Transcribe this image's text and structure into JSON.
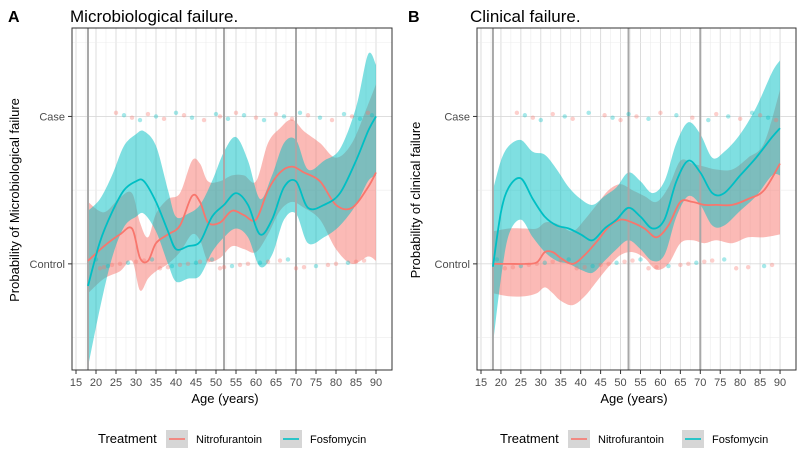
{
  "colors": {
    "nitrofurantoin": "#F8766D",
    "fosfomycin": "#00BFC4",
    "grid_major": "#d9d9d9",
    "grid_minor": "#ececec",
    "axis_text": "#4d4d4d",
    "ref_line": "#a8a8a8"
  },
  "legend": {
    "title": "Treatment",
    "items": [
      "Nitrofurantoin",
      "Fosfomycin"
    ]
  },
  "chart_data": [
    {
      "panel_label": "A",
      "type": "line",
      "title": "Microbiological failure.",
      "xlabel": "Age (years)",
      "ylabel": "Probability of Microbiological failure",
      "xlim": [
        14,
        94
      ],
      "ylim": [
        -0.72,
        1.6
      ],
      "y_ticks": [
        {
          "value": 0,
          "label": "Control"
        },
        {
          "value": 1,
          "label": "Case"
        }
      ],
      "x_ticks": [
        15,
        20,
        25,
        30,
        35,
        40,
        45,
        50,
        55,
        60,
        65,
        70,
        75,
        80,
        85,
        90
      ],
      "reference_lines": [
        18,
        52,
        70
      ],
      "series": [
        {
          "name": "Nitrofurantoin",
          "x": [
            18,
            22,
            26,
            29,
            31,
            33,
            35,
            38,
            41,
            44,
            46,
            48,
            51,
            54,
            57,
            60,
            63,
            66,
            69,
            72,
            76,
            80,
            84,
            88,
            90
          ],
          "y": [
            0.02,
            0.12,
            0.2,
            0.24,
            0.04,
            0.02,
            0.14,
            0.2,
            0.26,
            0.46,
            0.42,
            0.28,
            0.28,
            0.36,
            0.33,
            0.3,
            0.5,
            0.62,
            0.66,
            0.62,
            0.56,
            0.4,
            0.38,
            0.52,
            0.62
          ],
          "lower": [
            -0.2,
            -0.1,
            -0.05,
            0.02,
            -0.18,
            -0.1,
            -0.05,
            0.0,
            0.08,
            0.2,
            0.16,
            0.02,
            0.04,
            0.12,
            0.1,
            0.08,
            0.2,
            0.36,
            0.42,
            0.38,
            0.3,
            0.1,
            0.0,
            0.05,
            0.02
          ],
          "upper": [
            0.42,
            0.35,
            0.45,
            0.48,
            0.28,
            0.18,
            0.34,
            0.44,
            0.48,
            0.7,
            0.68,
            0.56,
            0.56,
            0.6,
            0.6,
            0.56,
            0.82,
            0.92,
            0.98,
            0.9,
            0.82,
            0.72,
            0.82,
            1.08,
            1.22
          ]
        },
        {
          "name": "Fosfomycin",
          "x": [
            18,
            21,
            24,
            27,
            30,
            32,
            35,
            38,
            40,
            43,
            46,
            49,
            52,
            55,
            58,
            61,
            64,
            67,
            70,
            73,
            77,
            81,
            85,
            88,
            90
          ],
          "y": [
            -0.15,
            0.15,
            0.35,
            0.5,
            0.56,
            0.56,
            0.42,
            0.22,
            0.1,
            0.12,
            0.15,
            0.32,
            0.4,
            0.48,
            0.4,
            0.2,
            0.3,
            0.52,
            0.56,
            0.38,
            0.4,
            0.48,
            0.7,
            0.9,
            1.0
          ],
          "lower": [
            -0.7,
            -0.3,
            0.04,
            0.25,
            0.32,
            0.34,
            0.22,
            0.0,
            -0.12,
            -0.1,
            -0.08,
            0.08,
            0.18,
            0.24,
            0.18,
            -0.02,
            0.06,
            0.3,
            0.34,
            0.14,
            0.18,
            0.26,
            0.4,
            0.56,
            0.6
          ],
          "upper": [
            0.36,
            0.44,
            0.6,
            0.8,
            0.88,
            0.9,
            0.8,
            0.5,
            0.32,
            0.34,
            0.4,
            0.56,
            0.76,
            0.86,
            0.7,
            0.44,
            0.6,
            0.82,
            0.84,
            0.64,
            0.7,
            0.78,
            1.06,
            1.42,
            1.35
          ]
        }
      ],
      "jitter_points": {
        "case_x": [
          25,
          27,
          29,
          31,
          33,
          35,
          37,
          40,
          42,
          44,
          47,
          50,
          51,
          53,
          55,
          57,
          60,
          62,
          65,
          67,
          69,
          71,
          73,
          76,
          79,
          82,
          84,
          86,
          88,
          89
        ],
        "control_x": [
          20,
          21,
          22,
          23,
          24,
          26,
          28,
          30,
          32,
          34,
          36,
          38,
          39,
          41,
          43,
          45,
          46,
          48,
          49,
          51,
          52,
          54,
          56,
          58,
          61,
          63,
          66,
          68,
          70,
          72,
          75,
          78,
          80,
          83,
          85,
          87
        ]
      }
    },
    {
      "panel_label": "B",
      "type": "line",
      "title": "Clinical failure.",
      "xlabel": "Age (years)",
      "ylabel": "Probability of clinical failure",
      "xlim": [
        14,
        94
      ],
      "ylim": [
        -0.72,
        1.6
      ],
      "y_ticks": [
        {
          "value": 0,
          "label": "Control"
        },
        {
          "value": 1,
          "label": "Case"
        }
      ],
      "x_ticks": [
        15,
        20,
        25,
        30,
        35,
        40,
        45,
        50,
        55,
        60,
        65,
        70,
        75,
        80,
        85,
        90
      ],
      "reference_lines": [
        18,
        52,
        70
      ],
      "series": [
        {
          "name": "Nitrofurantoin",
          "x": [
            18,
            22,
            26,
            29,
            31,
            33,
            35,
            38,
            41,
            44,
            47,
            50,
            53,
            56,
            59,
            62,
            65,
            68,
            71,
            74,
            78,
            82,
            86,
            90
          ],
          "y": [
            0.0,
            0.0,
            0.0,
            0.01,
            0.08,
            0.08,
            0.04,
            0.0,
            0.06,
            0.15,
            0.25,
            0.3,
            0.28,
            0.24,
            0.18,
            0.26,
            0.42,
            0.42,
            0.4,
            0.4,
            0.4,
            0.44,
            0.5,
            0.68
          ],
          "lower": [
            -0.2,
            -0.22,
            -0.22,
            -0.2,
            -0.16,
            -0.2,
            -0.25,
            -0.28,
            -0.22,
            -0.12,
            -0.02,
            0.06,
            0.08,
            0.04,
            -0.04,
            0.0,
            0.14,
            0.16,
            0.14,
            0.16,
            0.14,
            0.18,
            0.18,
            0.2
          ],
          "upper": [
            0.22,
            0.24,
            0.24,
            0.24,
            0.28,
            0.28,
            0.26,
            0.22,
            0.3,
            0.4,
            0.5,
            0.54,
            0.5,
            0.46,
            0.42,
            0.52,
            0.7,
            0.68,
            0.66,
            0.64,
            0.64,
            0.72,
            0.82,
            1.18
          ]
        },
        {
          "name": "Fosfomycin",
          "x": [
            18,
            20,
            22,
            25,
            28,
            31,
            34,
            37,
            40,
            43,
            46,
            49,
            52,
            55,
            58,
            61,
            64,
            67,
            70,
            73,
            76,
            80,
            84,
            88,
            90
          ],
          "y": [
            -0.02,
            0.35,
            0.52,
            0.58,
            0.44,
            0.32,
            0.26,
            0.24,
            0.2,
            0.16,
            0.24,
            0.3,
            0.38,
            0.32,
            0.24,
            0.3,
            0.56,
            0.7,
            0.62,
            0.48,
            0.48,
            0.6,
            0.72,
            0.86,
            0.92
          ],
          "lower": [
            -0.55,
            -0.1,
            0.2,
            0.3,
            0.18,
            0.08,
            0.02,
            0.0,
            -0.04,
            -0.06,
            0.02,
            0.1,
            0.16,
            0.1,
            0.02,
            0.06,
            0.32,
            0.46,
            0.4,
            0.26,
            0.26,
            0.36,
            0.46,
            0.6,
            0.6
          ],
          "upper": [
            0.5,
            0.7,
            0.8,
            0.84,
            0.76,
            0.74,
            0.64,
            0.52,
            0.44,
            0.4,
            0.46,
            0.52,
            0.62,
            0.56,
            0.48,
            0.56,
            0.82,
            0.96,
            0.88,
            0.72,
            0.76,
            0.88,
            1.06,
            1.3,
            1.38
          ]
        }
      ],
      "jitter_points": {
        "case_x": [
          24,
          26,
          28,
          30,
          33,
          36,
          38,
          42,
          46,
          48,
          50,
          52,
          54,
          57,
          60,
          64,
          68,
          72,
          74,
          77,
          80,
          83,
          85,
          87,
          89
        ],
        "control_x": [
          19,
          21,
          23,
          25,
          27,
          29,
          31,
          33,
          35,
          37,
          39,
          41,
          43,
          45,
          47,
          49,
          51,
          53,
          55,
          57,
          59,
          62,
          65,
          67,
          69,
          71,
          73,
          76,
          79,
          82,
          86,
          88
        ]
      }
    }
  ]
}
